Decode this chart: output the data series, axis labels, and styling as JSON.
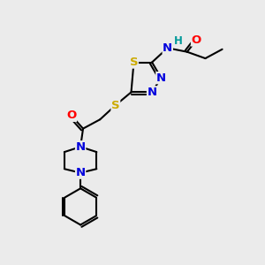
{
  "bg_color": "#ebebeb",
  "atom_colors": {
    "C": "#000000",
    "N": "#0000dd",
    "S": "#ccaa00",
    "O": "#ff0000",
    "H": "#009999"
  },
  "bond_color": "#000000",
  "bond_width": 1.5,
  "font_size_atom": 9.5,
  "font_size_small": 8.5
}
